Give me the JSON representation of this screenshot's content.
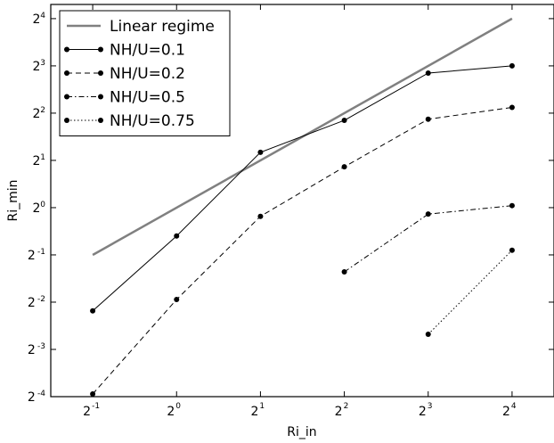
{
  "chart_data": {
    "type": "line",
    "title": "",
    "xlabel": "Ri_in",
    "ylabel": "Ri_min",
    "x_scale": "log2",
    "y_scale": "log2",
    "xlim_exp": [
      -1.5,
      4.5
    ],
    "ylim_exp": [
      -4,
      4.3
    ],
    "x_ticks": [
      {
        "base": "2",
        "exp": "-1"
      },
      {
        "base": "2",
        "exp": "0"
      },
      {
        "base": "2",
        "exp": "1"
      },
      {
        "base": "2",
        "exp": "2"
      },
      {
        "base": "2",
        "exp": "3"
      },
      {
        "base": "2",
        "exp": "4"
      }
    ],
    "y_ticks": [
      {
        "base": "2",
        "exp": "-4"
      },
      {
        "base": "2",
        "exp": "-3"
      },
      {
        "base": "2",
        "exp": "-2"
      },
      {
        "base": "2",
        "exp": "-1"
      },
      {
        "base": "2",
        "exp": "0"
      },
      {
        "base": "2",
        "exp": "1"
      },
      {
        "base": "2",
        "exp": "2"
      },
      {
        "base": "2",
        "exp": "3"
      },
      {
        "base": "2",
        "exp": "4"
      }
    ],
    "legend_position": "top-left",
    "grid": false,
    "series": [
      {
        "name": "Linear regime",
        "style": "solid-thick",
        "color": "#808080",
        "x": [
          0.5,
          16
        ],
        "y": [
          0.5,
          16
        ]
      },
      {
        "name": "NH/U=0.1",
        "style": "solid",
        "color": "#000000",
        "x": [
          0.5,
          1,
          2,
          4,
          8,
          16
        ],
        "y": [
          0.22,
          0.66,
          2.25,
          3.6,
          7.2,
          8.0
        ]
      },
      {
        "name": "NH/U=0.2",
        "style": "dashed",
        "color": "#000000",
        "x": [
          0.5,
          1,
          2,
          4,
          8,
          16
        ],
        "y": [
          0.065,
          0.26,
          0.88,
          1.82,
          3.66,
          4.35
        ]
      },
      {
        "name": "NH/U=0.5",
        "style": "dashdot",
        "color": "#000000",
        "x": [
          4,
          8,
          16
        ],
        "y": [
          0.39,
          0.91,
          1.03
        ]
      },
      {
        "name": "NH/U=0.75",
        "style": "dotted",
        "color": "#000000",
        "x": [
          8,
          16
        ],
        "y": [
          0.156,
          0.535
        ]
      }
    ]
  }
}
